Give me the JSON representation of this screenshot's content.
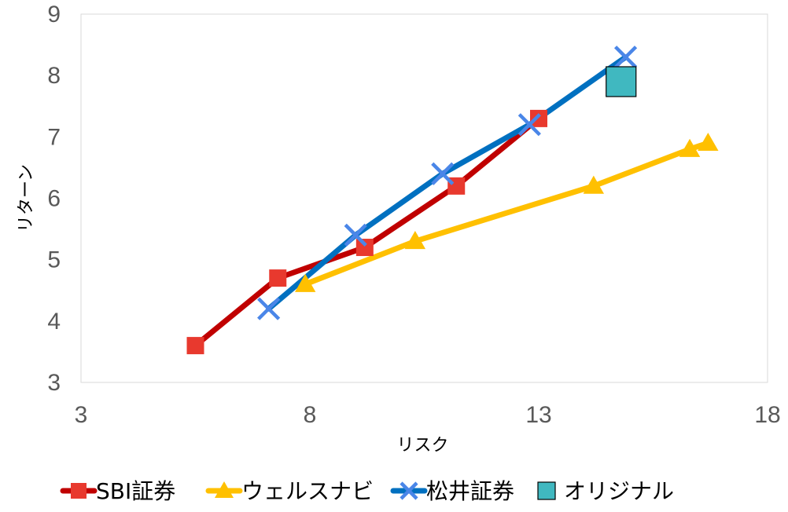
{
  "chart_data": {
    "type": "scatter",
    "xlabel": "リスク",
    "ylabel": "リターン",
    "xlim": [
      3,
      18
    ],
    "ylim": [
      3,
      9
    ],
    "xticks": [
      3,
      8,
      13,
      18
    ],
    "yticks": [
      3,
      4,
      5,
      6,
      7,
      8,
      9
    ],
    "grid": false,
    "legend_position": "bottom",
    "series": [
      {
        "name": "SBI証券",
        "color": "#C00000",
        "marker_color": "#E8392E",
        "marker": "square",
        "points": [
          [
            5.5,
            3.6
          ],
          [
            7.3,
            4.7
          ],
          [
            9.2,
            5.2
          ],
          [
            11.2,
            6.2
          ],
          [
            13.0,
            7.3
          ]
        ]
      },
      {
        "name": "ウェルスナビ",
        "color": "#FFC000",
        "marker_color": "#FFC000",
        "marker": "triangle",
        "points": [
          [
            7.9,
            4.6
          ],
          [
            10.3,
            5.3
          ],
          [
            14.2,
            6.2
          ],
          [
            16.3,
            6.8
          ],
          [
            16.7,
            6.9
          ]
        ]
      },
      {
        "name": "松井証券",
        "color": "#0070C0",
        "marker_color": "#4A86E8",
        "marker": "x",
        "points": [
          [
            7.1,
            4.2
          ],
          [
            9.0,
            5.4
          ],
          [
            10.9,
            6.4
          ],
          [
            12.8,
            7.2
          ],
          [
            14.9,
            8.3
          ]
        ]
      },
      {
        "name": "オリジナル",
        "color": "#40B8C0",
        "marker_color": "#40B8C0",
        "marker": "big-square",
        "line": false,
        "points": [
          [
            14.8,
            7.9
          ]
        ]
      }
    ]
  }
}
